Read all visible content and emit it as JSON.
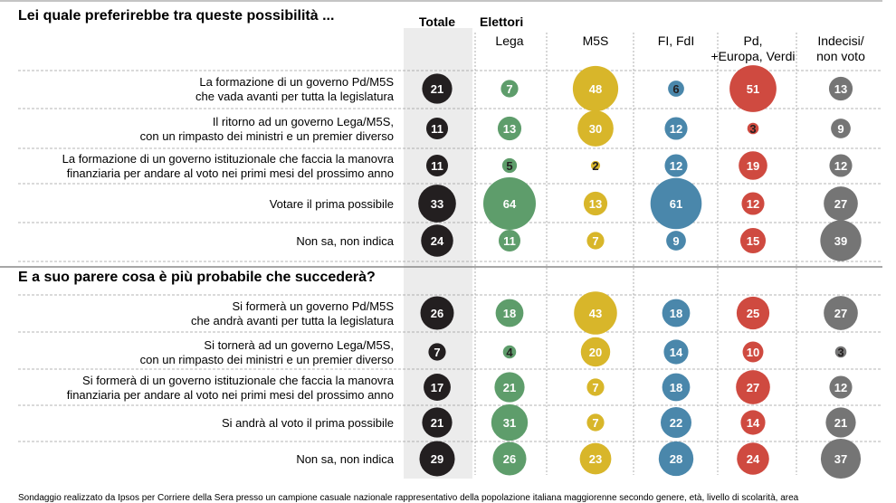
{
  "chart_data": {
    "type": "bubble-table",
    "colors": {
      "Totale": "#231f20",
      "Lega": "#5e9d6b",
      "M5S": "#d8b62a",
      "FI, FdI": "#4a87ab",
      "Pd, +Europa, Verdi": "#cf4a40",
      "Indecisi/ non voto": "#757575"
    },
    "total_header": "Totale",
    "group_header": "Elettori",
    "columns": [
      "Totale",
      "Lega",
      "M5S",
      "FI, FdI",
      "Pd, +Europa, Verdi",
      "Indecisi/ non voto"
    ],
    "column_labels": [
      [
        "Lega"
      ],
      [
        "M5S"
      ],
      [
        "FI, FdI"
      ],
      [
        "Pd,",
        "+Europa, Verdi"
      ],
      [
        "Indecisi/",
        "non voto"
      ]
    ],
    "sections": [
      {
        "title": "Lei quale preferirebbe tra queste possibilità ...",
        "rows": [
          {
            "label": [
              "La formazione di un governo Pd/M5S",
              "che vada avanti per tutta la legislatura"
            ],
            "values": [
              21,
              7,
              48,
              6,
              51,
              13
            ]
          },
          {
            "label": [
              "Il ritorno ad un governo Lega/M5S,",
              "con un rimpasto dei ministri e un premier diverso"
            ],
            "values": [
              11,
              13,
              30,
              12,
              3,
              9
            ]
          },
          {
            "label": [
              "La formazione di un governo istituzionale che faccia la manovra",
              "finanziaria per andare al voto nei primi mesi del prossimo anno"
            ],
            "values": [
              11,
              5,
              2,
              12,
              19,
              12
            ]
          },
          {
            "label": [
              "Votare il prima possibile"
            ],
            "values": [
              33,
              64,
              13,
              61,
              12,
              27
            ]
          },
          {
            "label": [
              "Non sa, non indica"
            ],
            "values": [
              24,
              11,
              7,
              9,
              15,
              39
            ]
          }
        ]
      },
      {
        "title": "E a suo parere cosa è più probabile che succederà?",
        "rows": [
          {
            "label": [
              "Si formerà un governo Pd/M5S",
              "che andrà avanti per tutta la legislatura"
            ],
            "values": [
              26,
              18,
              43,
              18,
              25,
              27
            ]
          },
          {
            "label": [
              "Si tornerà ad un governo Lega/M5S,",
              "con un rimpasto dei ministri e un premier diverso"
            ],
            "values": [
              7,
              4,
              20,
              14,
              10,
              3
            ]
          },
          {
            "label": [
              "Si formerà di un governo istituzionale che faccia la manovra",
              "finanziaria per andare al voto nei primi mesi del prossimo anno"
            ],
            "values": [
              17,
              21,
              7,
              18,
              27,
              12
            ]
          },
          {
            "label": [
              "Si andrà al voto il prima possibile"
            ],
            "values": [
              21,
              31,
              7,
              22,
              14,
              21
            ]
          },
          {
            "label": [
              "Non sa, non indica"
            ],
            "values": [
              29,
              26,
              23,
              28,
              24,
              37
            ]
          }
        ]
      }
    ],
    "footnote": "Sondaggio realizzato da Ipsos per Corriere della Sera presso un campione casuale nazionale rappresentativo della popolazione italiana maggiorenne secondo genere, età, livello di scolarità, area"
  }
}
